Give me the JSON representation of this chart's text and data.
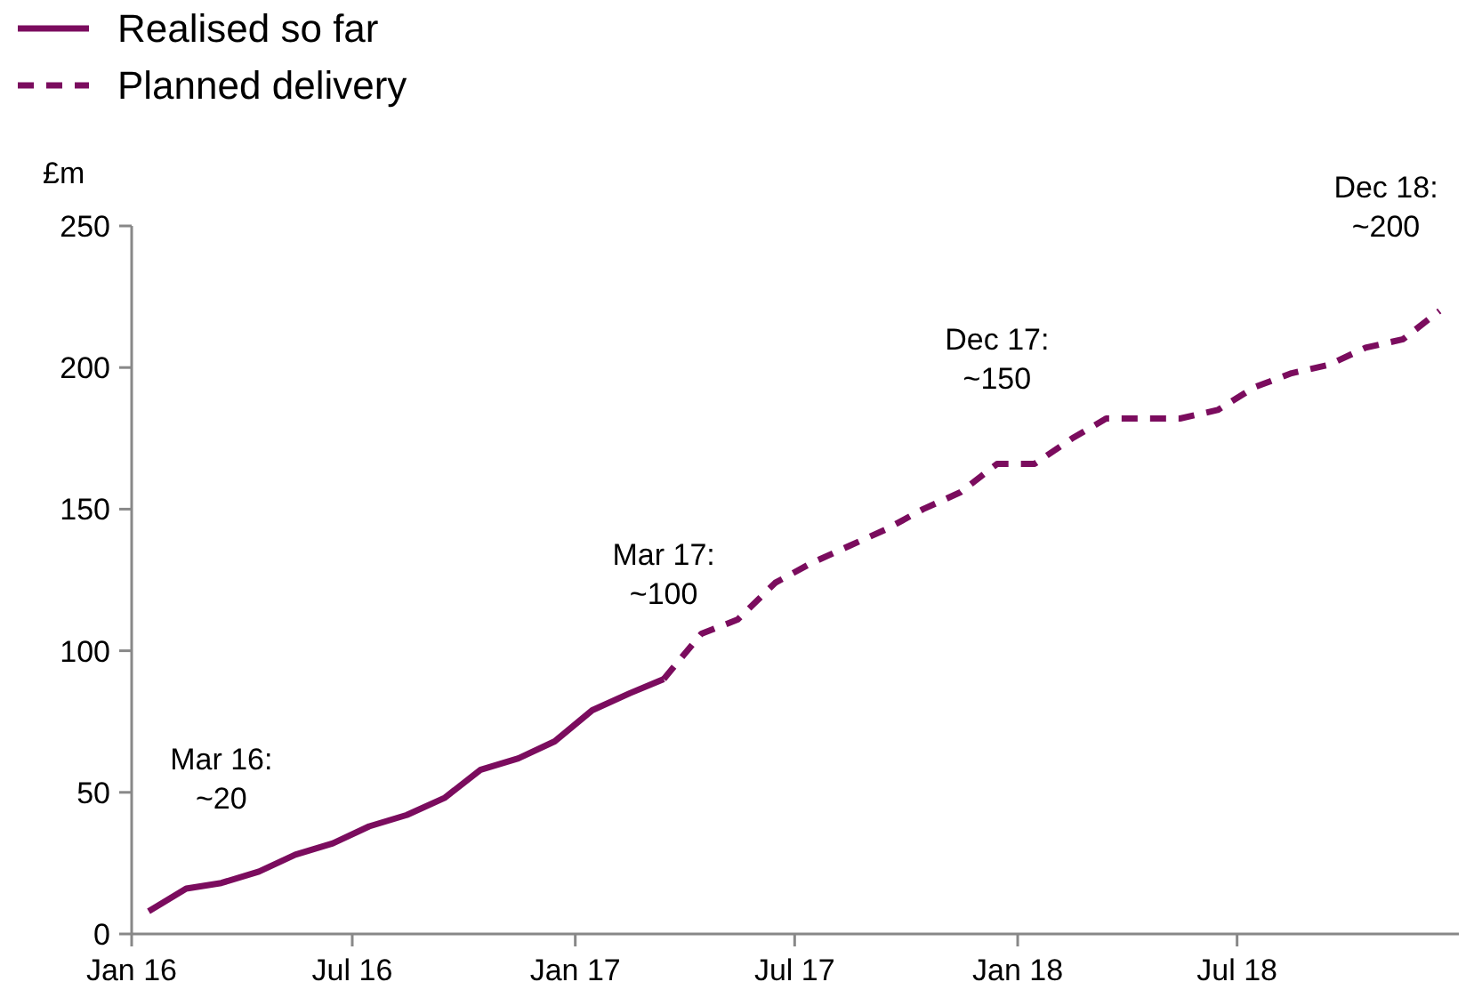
{
  "chart_data": {
    "type": "line",
    "ylabel": "£m",
    "legend": "top left",
    "grid": false,
    "ylim": [
      0,
      250
    ],
    "yticks": [
      0,
      50,
      100,
      150,
      200,
      250
    ],
    "xlim": [
      "2016-01-01",
      "2018-12-31"
    ],
    "xticks": [
      {
        "value": "2016-01-01",
        "label": "Jan 16"
      },
      {
        "value": "2016-07-01",
        "label": "Jul 16"
      },
      {
        "value": "2017-01-01",
        "label": "Jan 17"
      },
      {
        "value": "2017-07-01",
        "label": "Jul 17"
      },
      {
        "value": "2018-01-01",
        "label": "Jan 18"
      },
      {
        "value": "2018-07-01",
        "label": "Jul 18"
      }
    ],
    "series": [
      {
        "name": "Realised so far",
        "color": "#7b0c5e",
        "line_style": "solid",
        "x": [
          "2016-01-15",
          "2016-02-15",
          "2016-03-15",
          "2016-04-15",
          "2016-05-15",
          "2016-06-15",
          "2016-07-15",
          "2016-08-15",
          "2016-09-15",
          "2016-10-15",
          "2016-11-15",
          "2016-12-15",
          "2017-01-15",
          "2017-02-15",
          "2017-03-15"
        ],
        "values": [
          8,
          16,
          18,
          22,
          28,
          32,
          38,
          42,
          48,
          58,
          62,
          68,
          79,
          85,
          90
        ]
      },
      {
        "name": "Planned delivery",
        "color": "#7b0c5e",
        "line_style": "dashed",
        "x": [
          "2017-03-15",
          "2017-04-15",
          "2017-05-15",
          "2017-06-15",
          "2017-07-15",
          "2017-08-15",
          "2017-09-15",
          "2017-10-15",
          "2017-11-15",
          "2017-12-15",
          "2018-01-15",
          "2018-02-15",
          "2018-03-15",
          "2018-04-15",
          "2018-05-15",
          "2018-06-15",
          "2018-07-15",
          "2018-08-15",
          "2018-09-15",
          "2018-10-15",
          "2018-11-15",
          "2018-12-15"
        ],
        "values": [
          90,
          106,
          111,
          124,
          131,
          137,
          143,
          150,
          156,
          166,
          166,
          175,
          182,
          182,
          182,
          185,
          193,
          198,
          201,
          207,
          210,
          220
        ]
      }
    ],
    "annotations": [
      {
        "text": "Mar 16:\n~20",
        "x": "2016-03-15",
        "y": 18
      },
      {
        "text": "Mar 17:\n~100",
        "x": "2017-03-15",
        "y": 90
      },
      {
        "text": "Dec 17:\n~150",
        "x": "2017-12-15",
        "y": 166
      },
      {
        "text": "Dec 18:\n~200",
        "x": "2018-12-15",
        "y": 220
      }
    ]
  }
}
